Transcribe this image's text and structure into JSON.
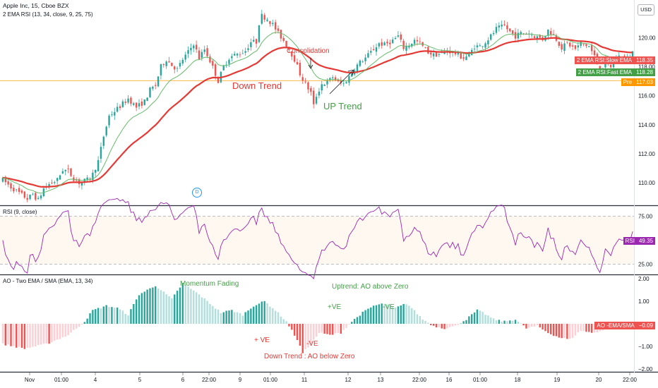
{
  "symbol": {
    "title": "Apple Inc, 15, Cboe BZX",
    "indicator": "2 EMA RSI (13, 34, close, 9, 25, 75)"
  },
  "currency_button": "USD",
  "panes": {
    "rsi_title": "RSI (9, close)",
    "ao_title": "AO - Two EMA / SMA  (EMA, 13, 34)"
  },
  "price_tags": {
    "slow": {
      "label": "2 EMA RSI:Slow EMA",
      "value": "118.35",
      "color": "#ef5350"
    },
    "fast": {
      "label": "2 EMA RSI:Fast EMA",
      "value": "118.28",
      "color": "#4caf50"
    },
    "pre": {
      "label": "Pre",
      "value": "117.03",
      "color": "#ff9800"
    },
    "rsi": {
      "label": "RSI",
      "value": "49.35",
      "color": "#9c27b0"
    },
    "ao": {
      "label": "AO -EMA/SMA",
      "value": "−0.09",
      "color": "#ef5350"
    }
  },
  "annotations": {
    "consolidation": "Consolidation",
    "down_trend": "Down Trend",
    "up_trend": "UP Trend",
    "momentum_fading": "Momentum Fading",
    "uptrend_ao": "Uptrend: AO above Zero",
    "plus_ve_1": "+VE",
    "minus_ve_1": "-VE",
    "plus_ve_2": "+ VE",
    "minus_ve_2": "-VE",
    "downtrend_ao": "Down Trend : AO below Zero",
    "dividend": "D"
  },
  "colors": {
    "up": "#26a69a",
    "down": "#ef5350",
    "slow_ema": "#e53935",
    "fast_ema": "#66bb6a",
    "rsi_line": "#9c27b0",
    "ao_up_strong": "#26a69a",
    "ao_up_weak": "#b2dfdb",
    "ao_down_strong": "#ef5350",
    "ao_down_weak": "#ffcdd2"
  },
  "chart_data": [
    {
      "type": "candlestick",
      "title": "Apple Inc, 15, Cboe BZX",
      "x_ticks": [
        "Nov",
        "01:00",
        "4",
        "5",
        "6",
        "22:00",
        "9",
        "01:00",
        "11",
        "12",
        "13",
        "22:00",
        "16",
        "01:00",
        "18",
        "19",
        "20",
        "22:00"
      ],
      "ylim": [
        108.5,
        122.2
      ],
      "y_ticks": [
        110,
        112,
        114,
        116,
        118,
        120
      ],
      "series": [
        {
          "name": "2 EMA RSI:Slow EMA",
          "last": 118.35
        },
        {
          "name": "2 EMA RSI:Fast EMA",
          "last": 118.28
        }
      ],
      "price_path": [
        [
          0,
          110.2
        ],
        [
          3,
          109.7
        ],
        [
          6,
          109.3
        ],
        [
          9,
          108.9
        ],
        [
          11,
          109.2
        ],
        [
          13,
          108.8
        ],
        [
          15,
          109.6
        ],
        [
          17,
          109.9
        ],
        [
          20,
          110.2
        ],
        [
          22,
          110.9
        ],
        [
          24,
          110.8
        ],
        [
          26,
          110.3
        ],
        [
          28,
          110.0
        ],
        [
          31,
          110.2
        ],
        [
          33,
          110.6
        ],
        [
          35,
          111.5
        ],
        [
          37,
          113.2
        ],
        [
          39,
          114.6
        ],
        [
          42,
          115.1
        ],
        [
          46,
          115.8
        ],
        [
          49,
          115.2
        ],
        [
          52,
          115.6
        ],
        [
          54,
          116.4
        ],
        [
          56,
          116.7
        ],
        [
          58,
          118.0
        ],
        [
          60,
          118.5
        ],
        [
          62,
          118.1
        ],
        [
          64,
          117.8
        ],
        [
          66,
          118.5
        ],
        [
          68,
          119.0
        ],
        [
          70,
          119.6
        ],
        [
          72,
          118.6
        ],
        [
          74,
          119.2
        ],
        [
          76,
          118.4
        ],
        [
          78,
          117.5
        ],
        [
          79,
          117.0
        ],
        [
          81,
          118.0
        ],
        [
          83,
          118.6
        ],
        [
          85,
          118.8
        ],
        [
          87,
          118.9
        ],
        [
          89,
          119.1
        ],
        [
          91,
          119.7
        ],
        [
          93,
          119.7
        ],
        [
          94,
          121.0
        ],
        [
          95,
          121.5
        ],
        [
          97,
          121.3
        ],
        [
          99,
          120.9
        ],
        [
          101,
          120.3
        ],
        [
          103,
          119.8
        ],
        [
          105,
          119.2
        ],
        [
          107,
          118.5
        ],
        [
          109,
          117.5
        ],
        [
          111,
          116.8
        ],
        [
          113,
          116.2
        ],
        [
          114,
          115.3
        ],
        [
          115,
          116.0
        ],
        [
          117,
          116.8
        ],
        [
          119,
          116.9
        ],
        [
          121,
          117.3
        ],
        [
          123,
          116.9
        ],
        [
          125,
          116.8
        ],
        [
          127,
          117.3
        ],
        [
          129,
          117.9
        ],
        [
          131,
          118.3
        ],
        [
          133,
          118.6
        ],
        [
          135,
          119.0
        ],
        [
          138,
          119.6
        ],
        [
          140,
          119.5
        ],
        [
          143,
          119.8
        ],
        [
          145,
          120.1
        ],
        [
          147,
          119.3
        ],
        [
          149,
          119.5
        ],
        [
          151,
          119.8
        ],
        [
          153,
          119.6
        ],
        [
          156,
          119.0
        ],
        [
          158,
          118.8
        ],
        [
          161,
          118.9
        ],
        [
          163,
          119.1
        ],
        [
          166,
          118.9
        ],
        [
          169,
          118.6
        ],
        [
          171,
          118.8
        ],
        [
          173,
          119.4
        ],
        [
          175,
          119.4
        ],
        [
          177,
          119.7
        ],
        [
          179,
          120.1
        ],
        [
          181,
          120.6
        ],
        [
          184,
          120.8
        ],
        [
          186,
          120.4
        ],
        [
          188,
          120.1
        ],
        [
          190,
          120.3
        ],
        [
          193,
          120.3
        ],
        [
          195,
          120.1
        ],
        [
          198,
          119.9
        ],
        [
          200,
          120.5
        ],
        [
          202,
          120.2
        ],
        [
          205,
          119.3
        ],
        [
          207,
          119.6
        ],
        [
          210,
          119.2
        ],
        [
          212,
          119.6
        ],
        [
          215,
          119.4
        ],
        [
          217,
          118.7
        ],
        [
          219,
          117.7
        ],
        [
          221,
          118.3
        ],
        [
          223,
          118.0
        ],
        [
          225,
          118.6
        ],
        [
          227,
          118.8
        ],
        [
          229,
          118.5
        ],
        [
          231,
          119.0
        ]
      ],
      "events": [
        {
          "label": "D",
          "x_tick": "4"
        }
      ]
    },
    {
      "type": "line",
      "title": "RSI (9, close)",
      "ylim": [
        15,
        85
      ],
      "y_ticks": [
        25,
        50,
        75
      ],
      "bands": [
        25,
        75
      ],
      "series": [
        {
          "name": "RSI",
          "last": 49.35
        }
      ]
    },
    {
      "type": "bar",
      "title": "AO - Two EMA / SMA  (EMA, 13, 34)",
      "ylim": [
        -2.1,
        2.1
      ],
      "y_ticks": [
        2.0,
        1.0,
        0.0,
        -1.0,
        -2.0
      ],
      "series": [
        {
          "name": "AO -EMA/SMA",
          "last": -0.09
        }
      ],
      "profile": [
        [
          0,
          -0.9
        ],
        [
          8,
          -1.1
        ],
        [
          16,
          -0.9
        ],
        [
          24,
          -0.5
        ],
        [
          30,
          0.1
        ],
        [
          33,
          0.6
        ],
        [
          38,
          0.8
        ],
        [
          42,
          0.7
        ],
        [
          46,
          0.4
        ],
        [
          50,
          1.3
        ],
        [
          56,
          1.7
        ],
        [
          62,
          1.1
        ],
        [
          66,
          1.8
        ],
        [
          72,
          1.3
        ],
        [
          76,
          0.9
        ],
        [
          80,
          0.5
        ],
        [
          84,
          0.6
        ],
        [
          88,
          0.4
        ],
        [
          92,
          0.8
        ],
        [
          96,
          1.0
        ],
        [
          100,
          0.6
        ],
        [
          104,
          0.1
        ],
        [
          108,
          -0.7
        ],
        [
          110,
          -1.3
        ],
        [
          113,
          -0.9
        ],
        [
          116,
          -0.4
        ],
        [
          120,
          -0.5
        ],
        [
          124,
          -0.4
        ],
        [
          128,
          0.1
        ],
        [
          132,
          0.5
        ],
        [
          136,
          0.8
        ],
        [
          140,
          0.9
        ],
        [
          144,
          0.7
        ],
        [
          148,
          0.9
        ],
        [
          150,
          0.7
        ],
        [
          154,
          0.2
        ],
        [
          158,
          -0.1
        ],
        [
          162,
          -0.2
        ],
        [
          166,
          -0.1
        ],
        [
          170,
          0.2
        ],
        [
          174,
          0.6
        ],
        [
          176,
          0.5
        ],
        [
          180,
          0.2
        ],
        [
          184,
          0.1
        ],
        [
          188,
          0.2
        ],
        [
          192,
          -0.2
        ],
        [
          196,
          -0.1
        ],
        [
          200,
          -0.4
        ],
        [
          204,
          -0.6
        ],
        [
          208,
          -0.7
        ],
        [
          212,
          -0.3
        ],
        [
          216,
          -0.4
        ],
        [
          220,
          -0.3
        ],
        [
          224,
          -0.1
        ],
        [
          231,
          -0.1
        ]
      ]
    }
  ]
}
